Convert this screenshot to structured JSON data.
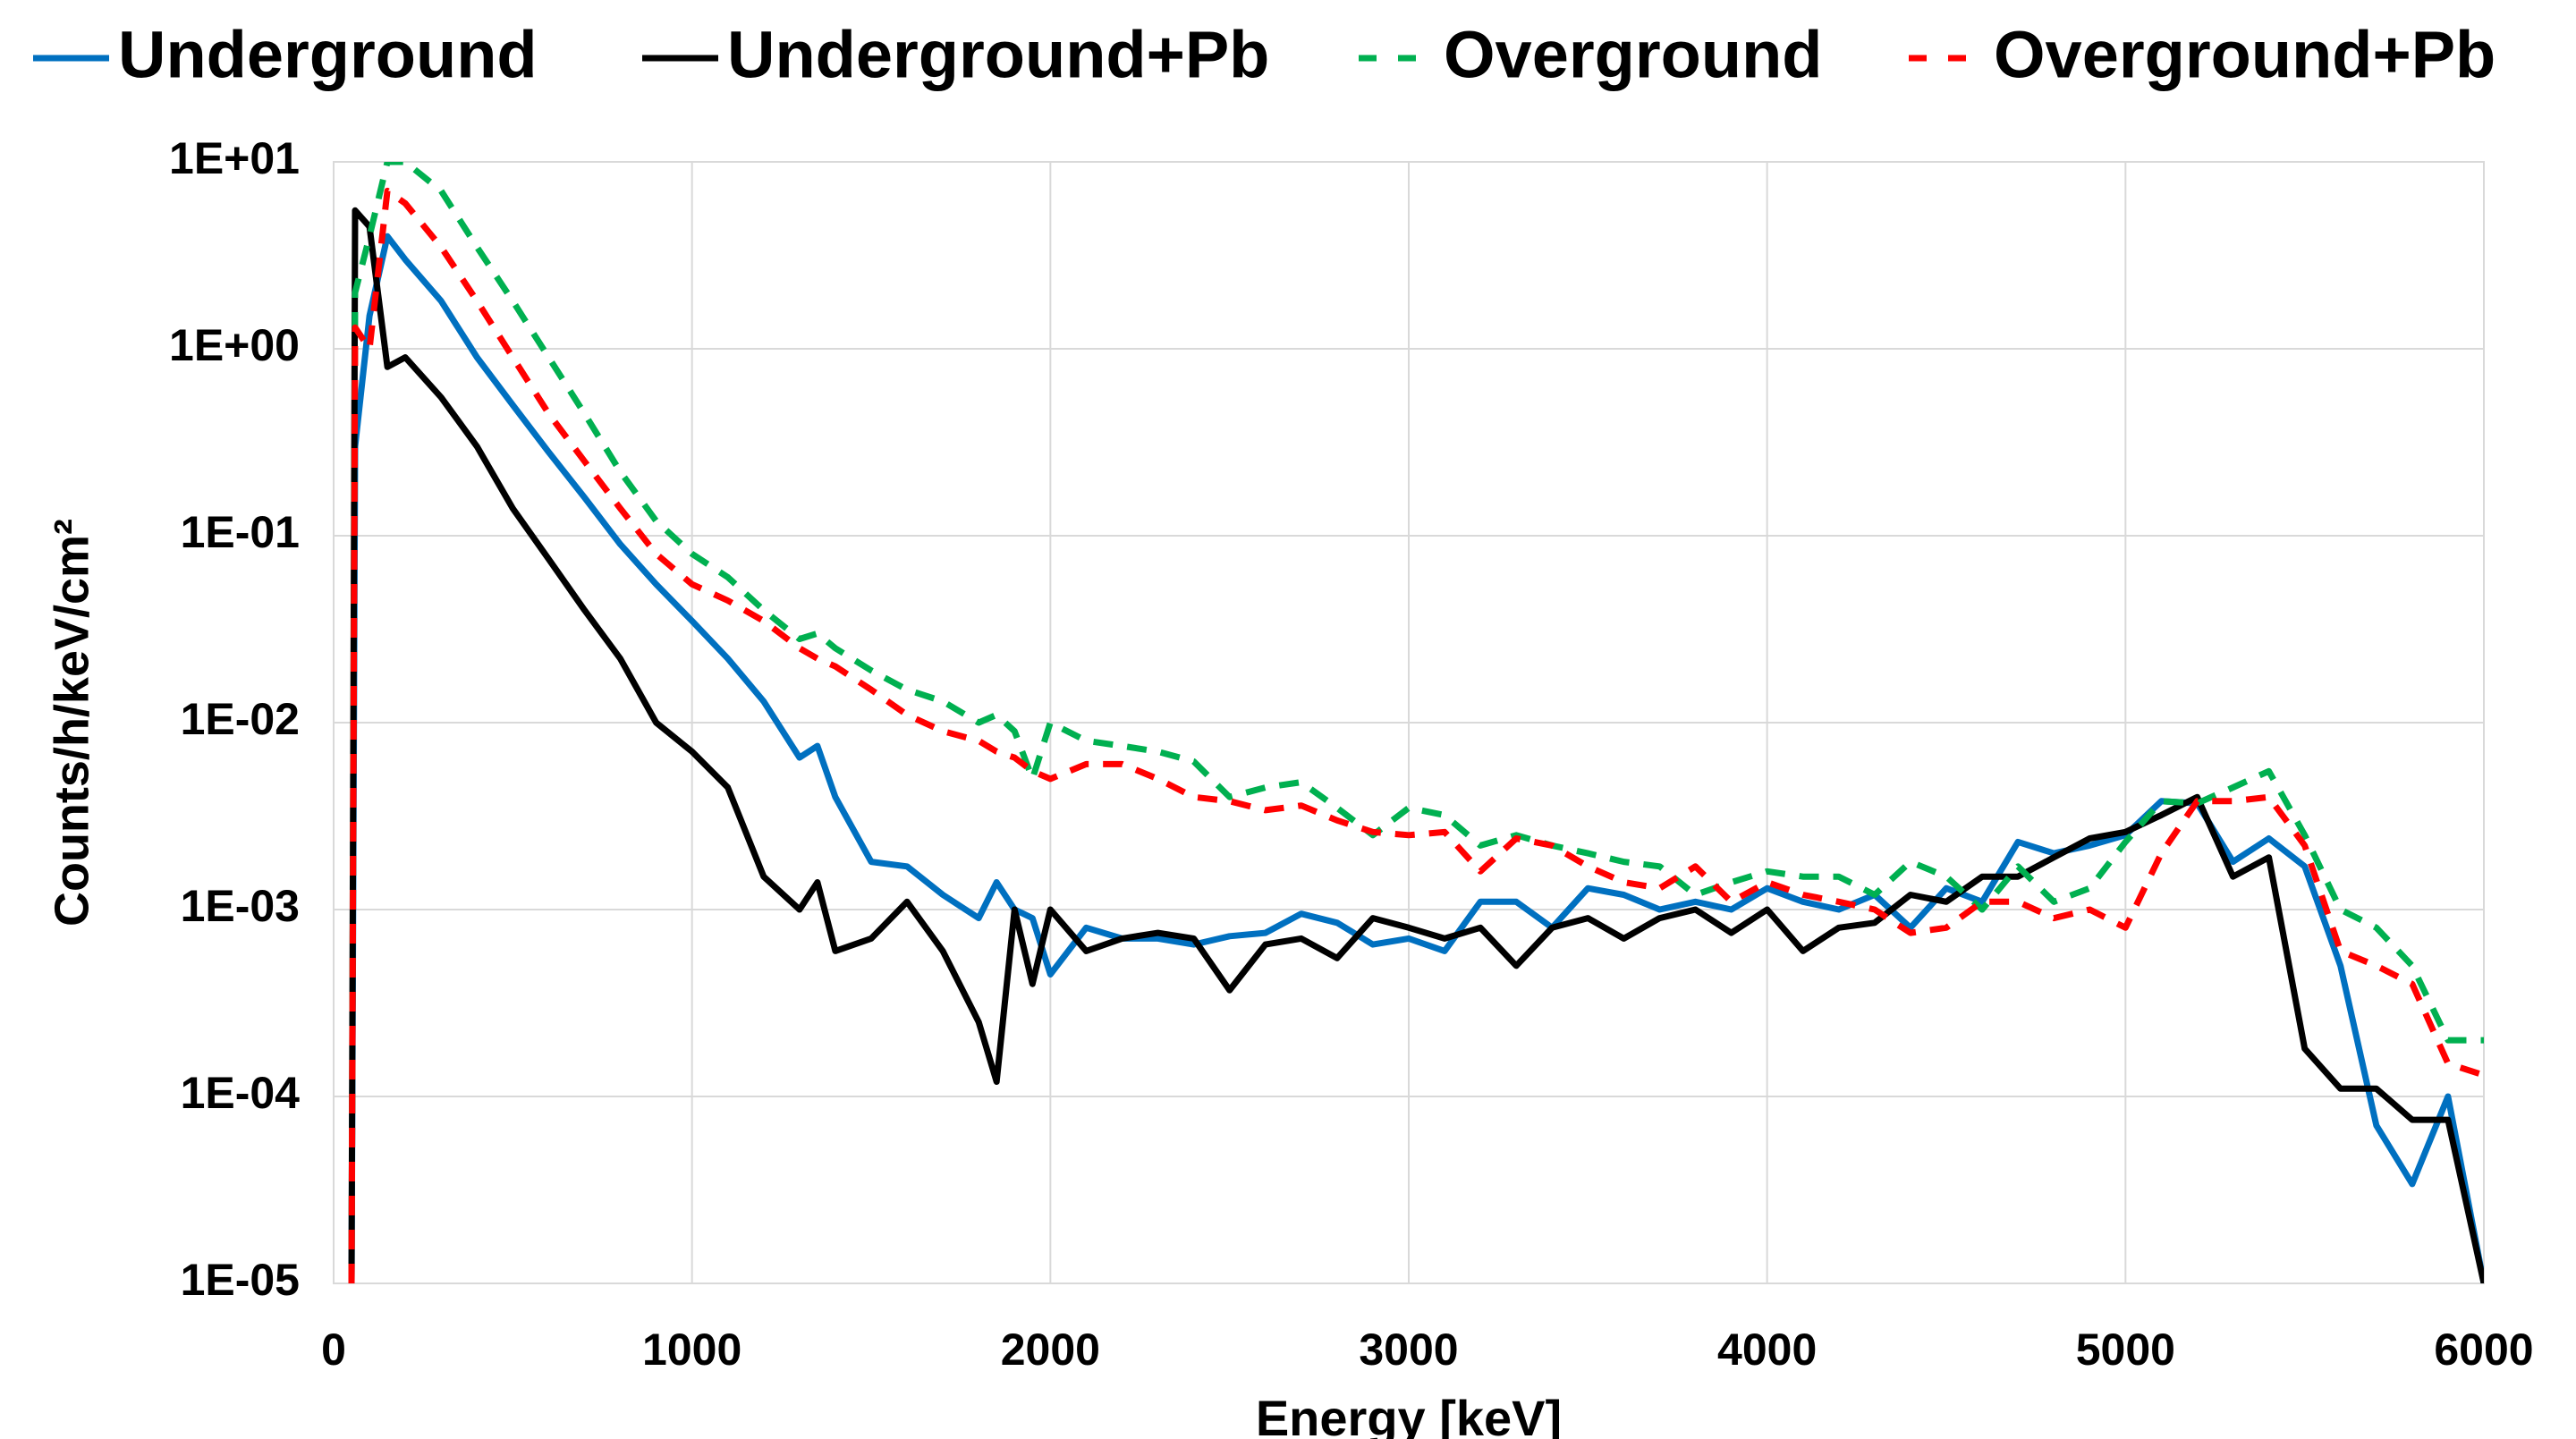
{
  "chart_data": {
    "type": "line",
    "x_label": "Energy [keV]",
    "y_label": "Counts/h/keV/cm²",
    "log_y": true,
    "grid": true,
    "legend": "top",
    "xlim": [
      0,
      6000
    ],
    "xticks": [
      0,
      1000,
      2000,
      3000,
      4000,
      5000,
      6000
    ],
    "ylim": [
      1e-05,
      10
    ],
    "yticks": [
      {
        "value": 1e-05,
        "label": "1E-05"
      },
      {
        "value": 0.0001,
        "label": "1E-04"
      },
      {
        "value": 0.001,
        "label": "1E-03"
      },
      {
        "value": 0.01,
        "label": "1E-02"
      },
      {
        "value": 0.1,
        "label": "1E-01"
      },
      {
        "value": 1,
        "label": "1E+00"
      },
      {
        "value": 10,
        "label": "1E+01"
      }
    ],
    "x": [
      50,
      60,
      100,
      150,
      200,
      300,
      400,
      500,
      600,
      700,
      800,
      900,
      1000,
      1100,
      1200,
      1300,
      1350,
      1400,
      1500,
      1600,
      1700,
      1800,
      1850,
      1900,
      1950,
      2000,
      2100,
      2200,
      2300,
      2400,
      2500,
      2600,
      2700,
      2800,
      2900,
      3000,
      3100,
      3200,
      3300,
      3400,
      3500,
      3600,
      3700,
      3800,
      3900,
      4000,
      4100,
      4200,
      4300,
      4400,
      4500,
      4600,
      4700,
      4800,
      4900,
      5000,
      5100,
      5200,
      5300,
      5400,
      5500,
      5600,
      5700,
      5800,
      5900,
      6000
    ],
    "series": [
      {
        "name": "Underground",
        "color": "#0070c0",
        "line_style": "solid",
        "values": [
          1e-05,
          0.3,
          1.5,
          4,
          3,
          1.8,
          0.9,
          0.5,
          0.28,
          0.16,
          0.09,
          0.055,
          0.035,
          0.022,
          0.013,
          0.0065,
          0.0075,
          0.004,
          0.0018,
          0.0017,
          0.0012,
          0.0009,
          0.0014,
          0.001,
          0.0009,
          0.00045,
          0.0008,
          0.0007,
          0.0007,
          0.00065,
          0.00072,
          0.00075,
          0.00095,
          0.00085,
          0.00065,
          0.0007,
          0.0006,
          0.0011,
          0.0011,
          0.0008,
          0.0013,
          0.0012,
          0.001,
          0.0011,
          0.001,
          0.0013,
          0.0011,
          0.001,
          0.0012,
          0.0008,
          0.0013,
          0.0011,
          0.0023,
          0.002,
          0.0022,
          0.0025,
          0.0038,
          0.0037,
          0.0018,
          0.0024,
          0.0017,
          0.0005,
          7e-05,
          3.4e-05,
          0.0001,
          1e-05
        ]
      },
      {
        "name": "Underground+Pb",
        "color": "#000000",
        "line_style": "solid",
        "values": [
          1e-05,
          5.5,
          4.5,
          0.8,
          0.9,
          0.55,
          0.3,
          0.14,
          0.075,
          0.04,
          0.022,
          0.01,
          0.007,
          0.0045,
          0.0015,
          0.001,
          0.0014,
          0.0006,
          0.0007,
          0.0011,
          0.0006,
          0.00025,
          0.00012,
          0.001,
          0.0004,
          0.001,
          0.0006,
          0.0007,
          0.00075,
          0.0007,
          0.00037,
          0.00065,
          0.0007,
          0.00055,
          0.0009,
          0.0008,
          0.0007,
          0.0008,
          0.0005,
          0.0008,
          0.0009,
          0.0007,
          0.0009,
          0.001,
          0.00075,
          0.001,
          0.0006,
          0.0008,
          0.00085,
          0.0012,
          0.0011,
          0.0015,
          0.0015,
          0.0019,
          0.0024,
          0.0026,
          0.0032,
          0.004,
          0.0015,
          0.0019,
          0.00018,
          0.00011,
          0.00011,
          7.5e-05,
          7.5e-05,
          1e-05
        ]
      },
      {
        "name": "Overground",
        "color": "#00b050",
        "line_style": "dashed",
        "values": [
          1e-05,
          2,
          4,
          10,
          10,
          7,
          3.5,
          1.8,
          0.9,
          0.45,
          0.22,
          0.12,
          0.08,
          0.06,
          0.04,
          0.028,
          0.03,
          0.025,
          0.019,
          0.015,
          0.013,
          0.01,
          0.011,
          0.009,
          0.005,
          0.01,
          0.008,
          0.0075,
          0.007,
          0.0062,
          0.004,
          0.0045,
          0.0048,
          0.0035,
          0.0025,
          0.0035,
          0.0032,
          0.0022,
          0.0025,
          0.0022,
          0.002,
          0.0018,
          0.0017,
          0.0012,
          0.0014,
          0.0016,
          0.0015,
          0.0015,
          0.0012,
          0.0018,
          0.0015,
          0.001,
          0.0017,
          0.0011,
          0.0013,
          0.0023,
          0.0038,
          0.0037,
          0.0045,
          0.0055,
          0.0025,
          0.001,
          0.0008,
          0.0005,
          0.0002,
          0.0002
        ]
      },
      {
        "name": "Overground+Pb",
        "color": "#ff0000",
        "line_style": "dashed",
        "values": [
          1e-05,
          1.3,
          1,
          7,
          6,
          3.5,
          1.8,
          0.9,
          0.45,
          0.25,
          0.14,
          0.08,
          0.055,
          0.045,
          0.035,
          0.025,
          0.022,
          0.02,
          0.015,
          0.011,
          0.009,
          0.008,
          0.007,
          0.0065,
          0.0055,
          0.005,
          0.006,
          0.006,
          0.005,
          0.004,
          0.0038,
          0.0034,
          0.0036,
          0.003,
          0.0026,
          0.0025,
          0.0026,
          0.0016,
          0.0024,
          0.0022,
          0.0017,
          0.0014,
          0.0013,
          0.0017,
          0.0011,
          0.0014,
          0.0012,
          0.0011,
          0.001,
          0.00075,
          0.0008,
          0.0011,
          0.0011,
          0.0009,
          0.001,
          0.0008,
          0.002,
          0.0038,
          0.0038,
          0.004,
          0.0022,
          0.0006,
          0.0005,
          0.0004,
          0.00015,
          0.00013
        ]
      }
    ]
  }
}
